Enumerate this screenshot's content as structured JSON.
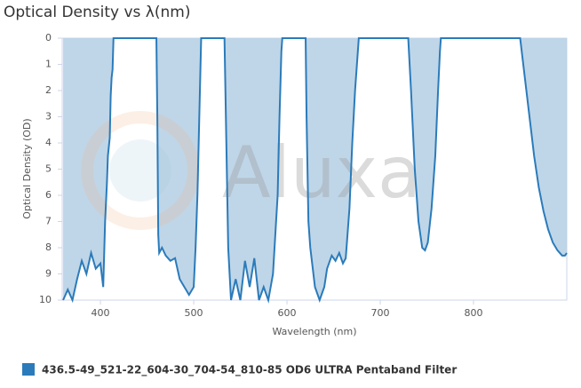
{
  "chart_data": {
    "type": "area",
    "title": "Optical Density vs λ(nm)",
    "x_label": "Wavelength (nm)",
    "y_label": "Optical Density (OD)",
    "watermark": "Aluxa",
    "xlim": [
      359,
      900
    ],
    "ylim": [
      0,
      10
    ],
    "y_inverted": true,
    "xticks": [
      400,
      500,
      600,
      700,
      800
    ],
    "yticks": [
      0,
      1,
      2,
      3,
      4,
      5,
      6,
      7,
      8,
      9,
      10
    ],
    "legend": "bottom-left",
    "series": [
      {
        "name": "436.5-49_521-22_604-30_704-54_810-85 OD6 ULTRA Pentaband Filter",
        "color": "#2b7bba",
        "fill": "#b4cfe4",
        "x": [
          360,
          365,
          370,
          375,
          380,
          385,
          390,
          395,
          400,
          403,
          405,
          407,
          408,
          410,
          411,
          412,
          413,
          414,
          460,
          461,
          462,
          463,
          466,
          470,
          475,
          480,
          485,
          490,
          495,
          500,
          502,
          504,
          506,
          507,
          508,
          533,
          535,
          537,
          540,
          545,
          550,
          555,
          560,
          565,
          570,
          575,
          580,
          585,
          590,
          592,
          594,
          595,
          620,
          621,
          623,
          625,
          630,
          635,
          640,
          643,
          648,
          652,
          656,
          660,
          663,
          667,
          670,
          673,
          675,
          677,
          730,
          733,
          737,
          741,
          745,
          748,
          751,
          755,
          759,
          762,
          764,
          765,
          850,
          855,
          860,
          865,
          870,
          875,
          880,
          885,
          890,
          895,
          898,
          900
        ],
        "values": [
          10,
          9.6,
          10,
          9.2,
          8.5,
          9,
          8.2,
          8.8,
          8.6,
          9.5,
          7,
          5.5,
          4.5,
          3.8,
          2.2,
          1.5,
          1.2,
          0,
          0,
          3,
          7.5,
          8.2,
          8,
          8.3,
          8.5,
          8.4,
          9.2,
          9.5,
          9.8,
          9.5,
          8,
          6,
          3,
          1.5,
          0,
          0,
          4,
          8,
          10,
          9.2,
          10,
          8.5,
          9.5,
          8.4,
          10,
          9.5,
          10,
          9,
          6,
          3,
          0.5,
          0,
          0,
          3,
          7,
          8,
          9.5,
          10,
          9.5,
          8.8,
          8.3,
          8.5,
          8.2,
          8.6,
          8.4,
          6.5,
          4,
          2,
          1,
          0,
          0,
          2,
          5,
          7,
          8,
          8.1,
          7.8,
          6.5,
          4.5,
          2,
          0.5,
          0,
          0,
          1.5,
          3,
          4.5,
          5.7,
          6.6,
          7.3,
          7.8,
          8.1,
          8.3,
          8.3,
          8.2
        ]
      }
    ]
  }
}
